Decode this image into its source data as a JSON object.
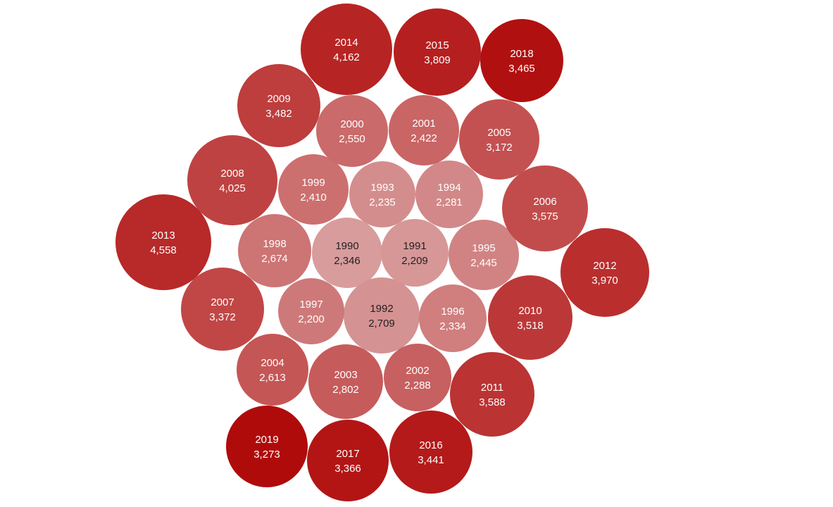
{
  "chart_data": {
    "type": "packed-bubble",
    "title": "",
    "size_encodes": "value",
    "color_encodes": "year",
    "color_scale": {
      "light": "#d89c9c",
      "dark": "#b00b0b"
    },
    "bubbles": [
      {
        "year": "1990",
        "value": "2,346",
        "v": 2346
      },
      {
        "year": "1991",
        "value": "2,209",
        "v": 2209
      },
      {
        "year": "1992",
        "value": "2,709",
        "v": 2709
      },
      {
        "year": "1993",
        "value": "2,235",
        "v": 2235
      },
      {
        "year": "1994",
        "value": "2,281",
        "v": 2281
      },
      {
        "year": "1995",
        "value": "2,445",
        "v": 2445
      },
      {
        "year": "1996",
        "value": "2,334",
        "v": 2334
      },
      {
        "year": "1997",
        "value": "2,200",
        "v": 2200
      },
      {
        "year": "1998",
        "value": "2,674",
        "v": 2674
      },
      {
        "year": "1999",
        "value": "2,410",
        "v": 2410
      },
      {
        "year": "2000",
        "value": "2,550",
        "v": 2550
      },
      {
        "year": "2001",
        "value": "2,422",
        "v": 2422
      },
      {
        "year": "2002",
        "value": "2,288",
        "v": 2288
      },
      {
        "year": "2003",
        "value": "2,802",
        "v": 2802
      },
      {
        "year": "2004",
        "value": "2,613",
        "v": 2613
      },
      {
        "year": "2005",
        "value": "3,172",
        "v": 3172
      },
      {
        "year": "2006",
        "value": "3,575",
        "v": 3575
      },
      {
        "year": "2007",
        "value": "3,372",
        "v": 3372
      },
      {
        "year": "2008",
        "value": "4,025",
        "v": 4025
      },
      {
        "year": "2009",
        "value": "3,482",
        "v": 3482
      },
      {
        "year": "2010",
        "value": "3,518",
        "v": 3518
      },
      {
        "year": "2011",
        "value": "3,588",
        "v": 3588
      },
      {
        "year": "2012",
        "value": "3,970",
        "v": 3970
      },
      {
        "year": "2013",
        "value": "4,558",
        "v": 4558
      },
      {
        "year": "2014",
        "value": "4,162",
        "v": 4162
      },
      {
        "year": "2015",
        "value": "3,809",
        "v": 3809
      },
      {
        "year": "2016",
        "value": "3,441",
        "v": 3441
      },
      {
        "year": "2017",
        "value": "3,366",
        "v": 3366
      },
      {
        "year": "2018",
        "value": "3,465",
        "v": 3465
      },
      {
        "year": "2019",
        "value": "3,273",
        "v": 3273
      }
    ]
  }
}
